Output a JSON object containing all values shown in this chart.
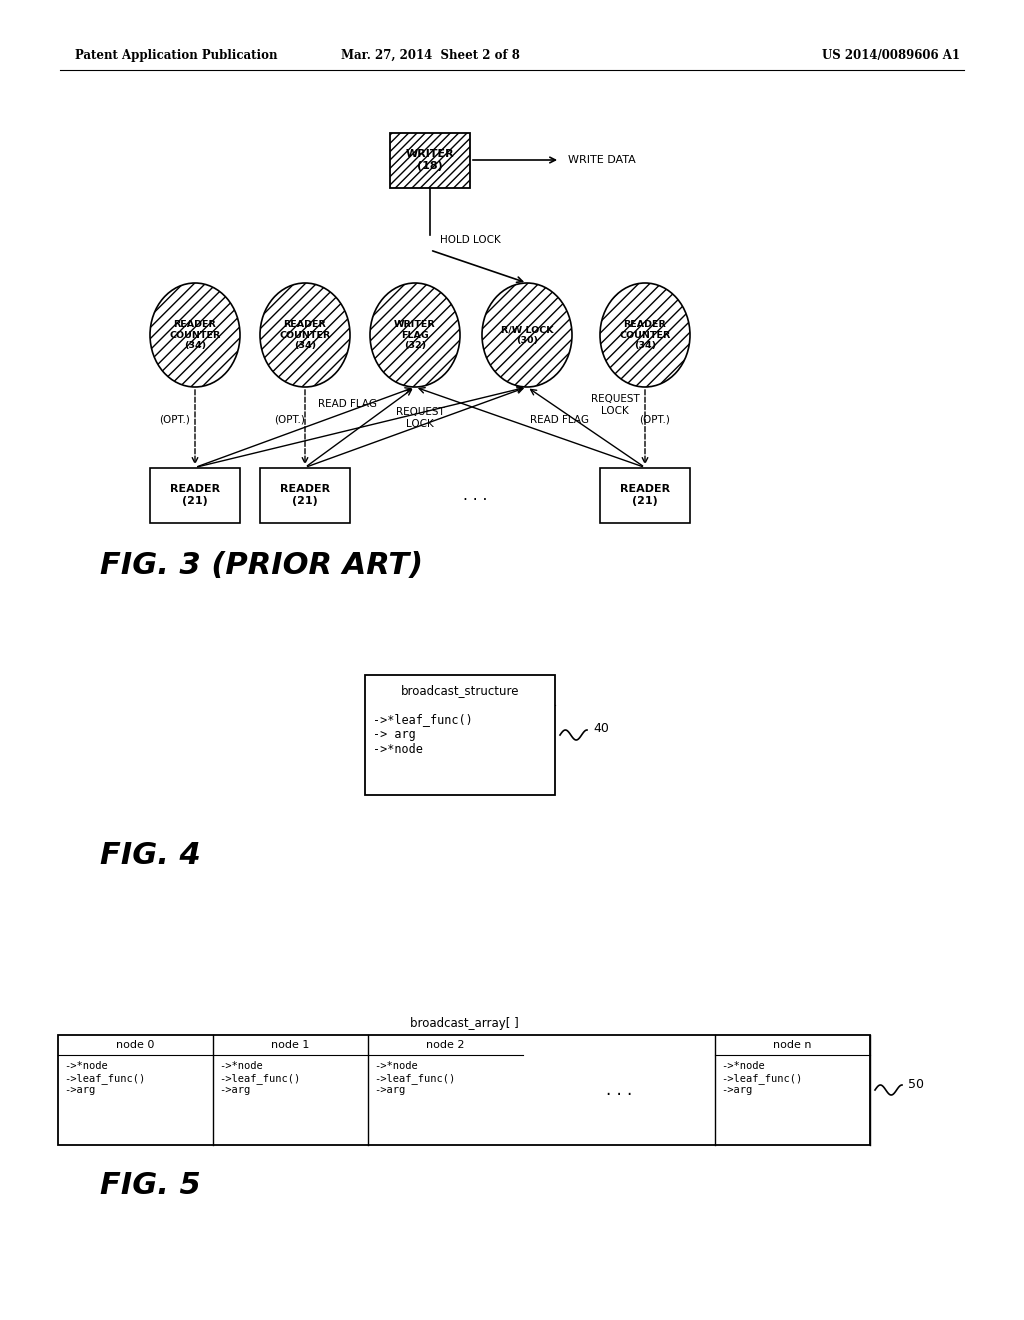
{
  "header_left": "Patent Application Publication",
  "header_mid": "Mar. 27, 2014  Sheet 2 of 8",
  "header_right": "US 2014/0089606 A1",
  "bg_color": "#ffffff",
  "fig3_title": "FIG. 3 (PRIOR ART)",
  "write_data_label": "WRITE DATA",
  "hold_lock_label": "HOLD LOCK",
  "circle_labels": [
    "READER\nCOUNTER\n(34)",
    "READER\nCOUNTER\n(34)",
    "WRITER\nFLAG\n(32)",
    "R/W LOCK\n(30)",
    "READER\nCOUNTER\n(34)"
  ],
  "reader_labels": [
    "READER\n(21)",
    "READER\n(21)",
    "READER\n(21)"
  ],
  "dots_label": ". . .",
  "fig4_title": "FIG. 4",
  "fig4_box_title": "broadcast_structure",
  "fig4_box_content": "->*leaf_func()\n-> arg\n->*node",
  "fig4_ref": "40",
  "fig5_title": "FIG. 5",
  "fig5_header": "broadcast_array[ ]",
  "fig5_ref": "50",
  "fig5_nodes": [
    {
      "title": "node 0",
      "content": "->*node\n->leaf_func()\n->arg"
    },
    {
      "title": "node 1",
      "content": "->*node\n->leaf_func()\n->arg"
    },
    {
      "title": "node 2",
      "content": "->*node\n->leaf_func()\n->arg"
    },
    {
      "title": "node n",
      "content": "->*node\n->leaf_func()\n->arg"
    }
  ],
  "fig5_dots": ". . ."
}
